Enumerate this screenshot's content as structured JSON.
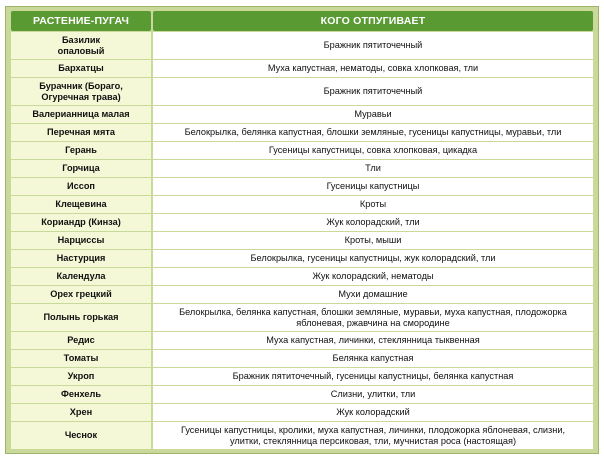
{
  "table": {
    "headers": [
      "РАСТЕНИЕ-ПУГАЧ",
      "КОГО ОТПУГИВАЕТ"
    ],
    "rows": [
      {
        "plant": "Базилик\nопаловый",
        "pests": "Бражник пятиточечный"
      },
      {
        "plant": "Бархатцы",
        "pests": "Муха капустная, нематоды, совка хлопковая, тли"
      },
      {
        "plant": "Бурачник (Бораго,\nОгуречная трава)",
        "pests": "Бражник пятиточечный"
      },
      {
        "plant": "Валерианница малая",
        "pests": "Муравьи"
      },
      {
        "plant": "Перечная мята",
        "pests": "Белокрылка, белянка капустная, блошки земляные, гусеницы капустницы, муравьи, тли"
      },
      {
        "plant": "Герань",
        "pests": "Гусеницы капустницы, совка хлопковая, цикадка"
      },
      {
        "plant": "Горчица",
        "pests": "Тли"
      },
      {
        "plant": "Иссоп",
        "pests": "Гусеницы капустницы"
      },
      {
        "plant": "Клещевина",
        "pests": "Кроты"
      },
      {
        "plant": "Кориандр (Кинза)",
        "pests": "Жук колорадский, тли"
      },
      {
        "plant": "Нарциссы",
        "pests": "Кроты, мыши"
      },
      {
        "plant": "Настурция",
        "pests": "Белокрылка, гусеницы капустницы, жук колорадский, тли"
      },
      {
        "plant": "Календула",
        "pests": "Жук колорадский, нематоды"
      },
      {
        "plant": "Орех грецкий",
        "pests": "Мухи домашние"
      },
      {
        "plant": "Полынь горькая",
        "pests": "Белокрылка, белянка капустная, блошки земляные, муравьи, муха капустная, плодожорка\nяблоневая, ржавчина на смородине"
      },
      {
        "plant": "Редис",
        "pests": "Муха капустная, личинки, стеклянница тыквенная"
      },
      {
        "plant": "Томаты",
        "pests": "Белянка капустная"
      },
      {
        "plant": "Укроп",
        "pests": "Бражник пятиточечный, гусеницы капустницы, белянка капустная"
      },
      {
        "plant": "Фенхель",
        "pests": "Слизни, улитки, тли"
      },
      {
        "plant": "Хрен",
        "pests": "Жук колорадский"
      },
      {
        "plant": "Чеснок",
        "pests": "Гусеницы капустницы, кролики, муха капустная, личинки, плодожорка яблоневая, слизни,\nулитки, стеклянница персиковая, тли, мучнистая роса (настоящая)"
      }
    ]
  }
}
